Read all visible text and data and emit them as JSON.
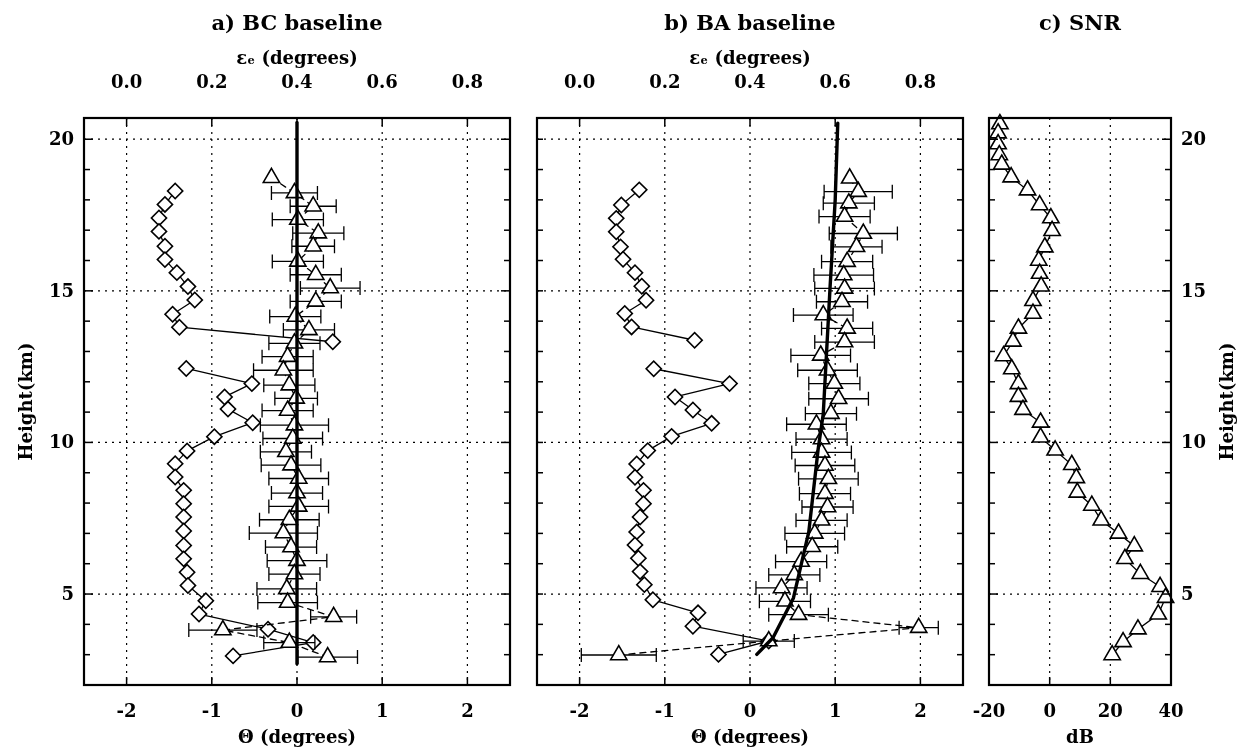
{
  "chart_data": [
    {
      "type": "line",
      "title": "a) BC baseline",
      "xlabel": "Θ (degrees)",
      "ylabel": "Height(km)",
      "x2label": "εₑ (degrees)",
      "xlim": [
        -2.5,
        2.5
      ],
      "xticks": [
        -2,
        -1,
        0,
        1,
        2
      ],
      "x2lim": [
        -0.1,
        0.9
      ],
      "x2ticks": [
        {
          "value": 0,
          "label": "0.0"
        },
        0.2,
        0.4,
        0.6,
        0.8
      ],
      "ylim": [
        2,
        20.7
      ],
      "yticks": [
        {
          "value": 3,
          "label": null
        },
        {
          "value": 4,
          "label": null
        },
        5,
        {
          "value": 6,
          "label": null
        },
        {
          "value": 7,
          "label": null
        },
        {
          "value": 8,
          "label": null
        },
        {
          "value": 9,
          "label": null
        },
        10,
        {
          "value": 11,
          "label": null
        },
        {
          "value": 12,
          "label": null
        },
        {
          "value": 13,
          "label": null
        },
        {
          "value": 14,
          "label": null
        },
        15,
        {
          "value": 16,
          "label": null
        },
        {
          "value": 17,
          "label": null
        },
        {
          "value": 18,
          "label": null
        },
        {
          "value": 19,
          "label": null
        },
        20
      ],
      "grid": true,
      "series": [
        {
          "type": "line",
          "color": "#000000",
          "marker": "diamond",
          "line_style": "solid",
          "x": [
            -1.43,
            -1.55,
            -1.62,
            -1.62,
            -1.55,
            -1.55,
            -1.41,
            -1.28,
            -1.2,
            -1.46,
            -1.38,
            0.42
          ],
          "values": [
            18.29,
            17.85,
            17.4,
            16.96,
            16.47,
            16.03,
            15.6,
            15.14,
            14.7,
            14.23,
            13.8,
            13.32
          ]
        },
        {
          "type": "line",
          "color": "#000000",
          "marker": "diamond",
          "line_style": "solid",
          "x": [
            -1.3,
            -0.53,
            -0.85,
            -0.81,
            -0.52,
            -0.97,
            -1.29,
            -1.43,
            -1.43,
            -1.33,
            -1.33,
            -1.33,
            -1.33,
            -1.33,
            -1.33,
            -1.29,
            -1.28,
            -1.07,
            -1.15,
            -0.34,
            0.19,
            -0.75
          ],
          "values": [
            12.44,
            11.94,
            11.5,
            11.1,
            10.65,
            10.19,
            9.72,
            9.3,
            8.86,
            8.42,
            7.98,
            7.54,
            7.08,
            6.6,
            6.16,
            5.72,
            5.28,
            4.78,
            4.34,
            3.84,
            3.4,
            2.96
          ]
        },
        {
          "type": "line",
          "color": "#000000",
          "marker": "triangle",
          "line_style": "dashed",
          "x": [
            -0.3,
            -0.03,
            0.19,
            0.01,
            0.25,
            0.19,
            0.01,
            0.22,
            0.39,
            0.22,
            -0.02,
            0.14,
            -0.03,
            -0.11,
            -0.16,
            -0.09,
            -0.01,
            -0.11,
            -0.03,
            -0.05,
            -0.13,
            -0.07,
            0.02,
            0,
            0.02,
            -0.09,
            -0.16,
            -0.07,
            0,
            -0.03,
            -0.12,
            -0.11,
            0.43,
            -0.87,
            -0.09,
            0.36
          ],
          "values": [
            18.73,
            18.23,
            17.79,
            17.35,
            16.9,
            16.47,
            15.97,
            15.53,
            15.09,
            14.65,
            14.15,
            13.71,
            13.27,
            12.83,
            12.38,
            11.89,
            11.45,
            11.05,
            10.57,
            10.13,
            9.69,
            9.25,
            8.81,
            8.33,
            7.89,
            7.45,
            7.01,
            6.55,
            6.1,
            5.66,
            5.17,
            4.72,
            4.25,
            3.81,
            3.4,
            2.92
          ],
          "xerrors": [
            null,
            0.27,
            0.27,
            0.3,
            0.3,
            0.25,
            0.3,
            0.3,
            0.35,
            0.3,
            0.3,
            0.3,
            0.3,
            0.3,
            0.35,
            0.3,
            0.25,
            0.3,
            0.4,
            0.35,
            0.3,
            0.35,
            0.35,
            0.3,
            0.35,
            0.35,
            0.4,
            0.3,
            0.35,
            0.3,
            0.35,
            0.35,
            0.27,
            0.4,
            0.3,
            0.35
          ]
        },
        {
          "type": "line",
          "color": "#000000",
          "marker": "none",
          "line_style": "solid",
          "x": [
            0,
            0
          ],
          "values": [
            2.7,
            20.55
          ]
        }
      ]
    },
    {
      "type": "line",
      "title": "b) BA baseline",
      "xlabel": "Θ (degrees)",
      "x2label": "εₑ (degrees)",
      "xlim": [
        -2.5,
        2.5
      ],
      "xticks": [
        -2,
        -1,
        0,
        1,
        2
      ],
      "x2lim": [
        -0.1,
        0.9
      ],
      "x2ticks": [
        {
          "value": 0,
          "label": "0.0"
        },
        0.2,
        0.4,
        0.6,
        0.8
      ],
      "ylim": [
        2,
        20.7
      ],
      "yticks": [
        {
          "value": 3,
          "label": null
        },
        {
          "value": 4,
          "label": null
        },
        {
          "value": 5,
          "label": null
        },
        {
          "value": 6,
          "label": null
        },
        {
          "value": 7,
          "label": null
        },
        {
          "value": 8,
          "label": null
        },
        {
          "value": 9,
          "label": null
        },
        {
          "value": 10,
          "label": null
        },
        {
          "value": 11,
          "label": null
        },
        {
          "value": 12,
          "label": null
        },
        {
          "value": 13,
          "label": null
        },
        {
          "value": 14,
          "label": null
        },
        {
          "value": 15,
          "label": null
        },
        {
          "value": 16,
          "label": null
        },
        {
          "value": 17,
          "label": null
        },
        {
          "value": 18,
          "label": null
        },
        {
          "value": 19,
          "label": null
        },
        {
          "value": 20,
          "label": null
        }
      ],
      "grid": true,
      "tick_labels": "x",
      "series": [
        {
          "type": "line",
          "color": "#000000",
          "marker": "diamond",
          "line_style": "solid",
          "x": [
            -1.3,
            -1.51,
            -1.57,
            -1.57,
            -1.52,
            -1.49,
            -1.35,
            -1.27,
            -1.22,
            -1.47,
            -1.39,
            -0.65
          ],
          "values": [
            18.33,
            17.83,
            17.39,
            16.95,
            16.45,
            16.04,
            15.6,
            15.15,
            14.69,
            14.25,
            13.81,
            13.37
          ]
        },
        {
          "type": "line",
          "color": "#000000",
          "marker": "diamond",
          "line_style": "solid",
          "x": [
            -1.13,
            -0.24,
            -0.88,
            -0.67,
            -0.45,
            -0.92,
            -1.2,
            -1.33,
            -1.35,
            -1.25,
            -1.25,
            -1.29,
            -1.33,
            -1.35,
            -1.31,
            -1.29,
            -1.24,
            -1.14,
            -0.61,
            -0.67,
            0.22,
            -0.37
          ],
          "values": [
            12.43,
            11.94,
            11.5,
            11.07,
            10.63,
            10.2,
            9.73,
            9.29,
            8.85,
            8.42,
            7.98,
            7.54,
            7.05,
            6.62,
            6.18,
            5.74,
            5.31,
            4.81,
            4.38,
            3.94,
            3.45,
            3.01
          ]
        },
        {
          "type": "line",
          "color": "#000000",
          "marker": "triangle",
          "line_style": "dashed",
          "x": [
            1.17,
            1.27,
            1.16,
            1.11,
            1.33,
            1.25,
            1.14,
            1.1,
            1.11,
            1.08,
            0.86,
            1.14,
            1.11,
            0.83,
            0.91,
            0.99,
            1.04,
            0.95,
            0.78,
            0.84,
            0.84,
            0.88,
            0.92,
            0.88,
            0.91,
            0.84,
            0.76,
            0.73,
            0.6,
            0.52,
            0.37,
            0.41,
            0.57,
            1.98,
            0.22,
            -1.54
          ],
          "values": [
            18.71,
            18.27,
            17.89,
            17.45,
            16.89,
            16.45,
            15.96,
            15.52,
            15.08,
            14.64,
            14.2,
            13.76,
            13.31,
            12.87,
            12.38,
            11.94,
            11.44,
            10.95,
            10.6,
            10.11,
            9.67,
            9.24,
            8.8,
            8.31,
            7.87,
            7.43,
            7.0,
            6.56,
            6.07,
            5.63,
            5.2,
            4.76,
            4.32,
            3.89,
            3.45,
            2.99
          ],
          "xerrors": [
            null,
            0.4,
            0.3,
            0.3,
            0.4,
            0.3,
            0.3,
            0.35,
            0.35,
            0.3,
            0.35,
            0.3,
            0.35,
            0.35,
            0.35,
            0.3,
            0.35,
            0.3,
            0.35,
            0.3,
            0.35,
            0.35,
            0.35,
            0.3,
            0.3,
            0.3,
            0.35,
            0.3,
            0.3,
            0.3,
            0.3,
            0.3,
            0.35,
            0.23,
            0.3,
            0.44
          ]
        },
        {
          "type": "line",
          "color": "#000000",
          "marker": "none",
          "line_style": "solid",
          "x": [
            0.08,
            0.27,
            0.51,
            0.69,
            0.8,
            0.86,
            0.94,
            1.0,
            1.03
          ],
          "values": [
            3.01,
            3.56,
            4.87,
            7.05,
            9.78,
            10.95,
            15.13,
            18.0,
            20.53
          ]
        }
      ]
    },
    {
      "type": "line",
      "title": "c) SNR",
      "xlabel": "dB",
      "y2label": "Height(km)",
      "xlim": [
        -20,
        40
      ],
      "xticks": [
        -20,
        0,
        20,
        40
      ],
      "y2lim": [
        2,
        20.7
      ],
      "y2ticks": [
        {
          "value": 3,
          "label": null
        },
        {
          "value": 4,
          "label": null
        },
        5,
        {
          "value": 6,
          "label": null
        },
        {
          "value": 7,
          "label": null
        },
        {
          "value": 8,
          "label": null
        },
        {
          "value": 9,
          "label": null
        },
        10,
        {
          "value": 11,
          "label": null
        },
        {
          "value": 12,
          "label": null
        },
        {
          "value": 13,
          "label": null
        },
        {
          "value": 14,
          "label": null
        },
        15,
        {
          "value": 16,
          "label": null
        },
        {
          "value": 17,
          "label": null
        },
        {
          "value": 18,
          "label": null
        },
        {
          "value": 19,
          "label": null
        },
        20
      ],
      "grid": true,
      "series": [
        {
          "type": "line",
          "color": "#000000",
          "marker": "triangle",
          "line_style": "solid",
          "axis": "y2",
          "x": [
            -16.4,
            -17,
            -17,
            -16.6,
            -15.8,
            -12.7,
            -7.3,
            -3.3,
            0.4,
            0.8,
            -1.6,
            -3.6,
            -3.3,
            -2.8,
            -5.5,
            -5.5,
            -10.3,
            -12.1,
            -15.2,
            -12.5,
            -10.3,
            -10.3,
            -8.8,
            -3,
            -3,
            1.8,
            7.3,
            8.8,
            9.1,
            13.9,
            17,
            22.7,
            27.9,
            24.8,
            29.9,
            36.4,
            38.2,
            35.8,
            29.1,
            24.2,
            20.6
          ],
          "values": [
            20.5,
            20.2,
            19.84,
            19.48,
            19.17,
            18.75,
            18.32,
            17.83,
            17.4,
            16.98,
            16.44,
            16.0,
            15.57,
            15.15,
            14.67,
            14.25,
            13.76,
            13.33,
            12.85,
            12.42,
            11.93,
            11.51,
            11.08,
            10.66,
            10.17,
            9.74,
            9.26,
            8.83,
            8.35,
            7.92,
            7.43,
            7.0,
            6.58,
            6.16,
            5.67,
            5.24,
            4.88,
            4.33,
            3.84,
            3.42,
            2.99
          ]
        }
      ]
    }
  ]
}
